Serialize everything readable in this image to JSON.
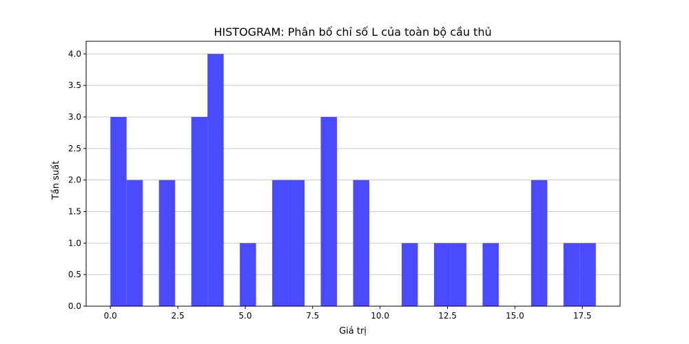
{
  "chart_data": {
    "type": "bar",
    "title": "HISTOGRAM: Phân bố chỉ số L của toàn bộ cầu thủ",
    "xlabel": "Giá trị",
    "ylabel": "Tần suất",
    "xlim": [
      -0.9,
      18.9
    ],
    "ylim": [
      0,
      4.2
    ],
    "xticks": [
      "0.0",
      "2.5",
      "5.0",
      "7.5",
      "10.0",
      "12.5",
      "15.0",
      "17.5"
    ],
    "yticks": [
      "0.0",
      "0.5",
      "1.0",
      "1.5",
      "2.0",
      "2.5",
      "3.0",
      "3.5",
      "4.0"
    ],
    "grid": "y",
    "bar_color": "#4a4aff",
    "bins": [
      {
        "start": 0.0,
        "end": 0.6,
        "count": 3
      },
      {
        "start": 0.6,
        "end": 1.2,
        "count": 2
      },
      {
        "start": 1.8,
        "end": 2.4,
        "count": 2
      },
      {
        "start": 3.0,
        "end": 3.6,
        "count": 3
      },
      {
        "start": 3.6,
        "end": 4.2,
        "count": 4
      },
      {
        "start": 4.8,
        "end": 5.4,
        "count": 1
      },
      {
        "start": 6.0,
        "end": 6.6,
        "count": 2
      },
      {
        "start": 6.6,
        "end": 7.2,
        "count": 2
      },
      {
        "start": 7.8,
        "end": 8.4,
        "count": 3
      },
      {
        "start": 9.0,
        "end": 9.6,
        "count": 2
      },
      {
        "start": 10.8,
        "end": 11.4,
        "count": 1
      },
      {
        "start": 12.0,
        "end": 12.6,
        "count": 1
      },
      {
        "start": 12.6,
        "end": 13.2,
        "count": 1
      },
      {
        "start": 13.8,
        "end": 14.4,
        "count": 1
      },
      {
        "start": 15.6,
        "end": 16.2,
        "count": 2
      },
      {
        "start": 16.8,
        "end": 17.4,
        "count": 1
      },
      {
        "start": 17.4,
        "end": 18.0,
        "count": 1
      }
    ]
  }
}
